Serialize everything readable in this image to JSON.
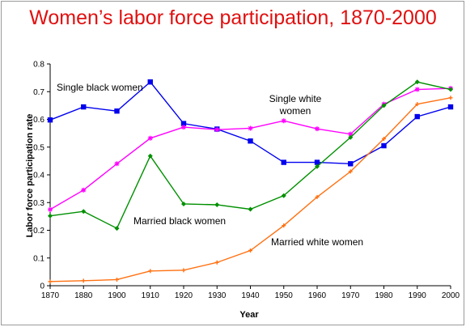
{
  "chart_data": {
    "type": "line",
    "title": "Women’s labor force participation, 1870-2000",
    "xlabel": "Year",
    "ylabel": "Labor force participation rate",
    "x": [
      1870,
      1880,
      1900,
      1910,
      1920,
      1930,
      1940,
      1950,
      1960,
      1970,
      1980,
      1990,
      2000
    ],
    "xlim": [
      1870,
      2000
    ],
    "ylim": [
      0,
      0.8
    ],
    "yticks": [
      "0",
      "0.1",
      "0.2",
      "0.3",
      "0.4",
      "0.5",
      "0.6",
      "0.7",
      "0.8"
    ],
    "grid": false,
    "legend": "none",
    "series": [
      {
        "name": "Single black women",
        "color": "#0000ee",
        "marker": "square",
        "values": [
          0.598,
          0.645,
          0.63,
          0.735,
          0.585,
          0.565,
          0.522,
          0.445,
          0.445,
          0.44,
          0.505,
          0.61,
          0.645
        ]
      },
      {
        "name": "Single white women",
        "color": "#ff00ff",
        "marker": "star",
        "values": [
          0.275,
          0.345,
          0.44,
          0.532,
          0.572,
          0.563,
          0.568,
          0.595,
          0.566,
          0.547,
          0.655,
          0.708,
          0.712
        ]
      },
      {
        "name": "Married black women",
        "color": "#009000",
        "marker": "diamond",
        "values": [
          0.252,
          0.268,
          0.207,
          0.468,
          0.295,
          0.292,
          0.276,
          0.325,
          0.43,
          0.535,
          0.65,
          0.735,
          0.708
        ]
      },
      {
        "name": "Married white women",
        "color": "#ff7010",
        "marker": "plus",
        "values": [
          0.015,
          0.018,
          0.022,
          0.053,
          0.056,
          0.084,
          0.127,
          0.217,
          0.32,
          0.412,
          0.53,
          0.655,
          0.678
        ]
      }
    ]
  }
}
